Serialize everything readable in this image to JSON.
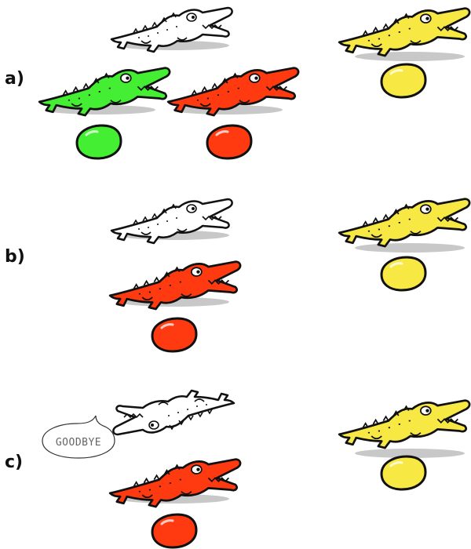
{
  "rows": [
    {
      "label": "a)"
    },
    {
      "label": "b)"
    },
    {
      "label": "c)"
    }
  ],
  "speech_bubble": {
    "text": "GOODBYE"
  },
  "colors": {
    "white_gator": "#ffffff",
    "green_gator": "#44ee33",
    "red_gator": "#ff3a10",
    "yellow_gator": "#f7e844",
    "green_egg": "#44ee33",
    "red_egg": "#ff3a10",
    "yellow_egg": "#f7e844",
    "outline": "#111111",
    "shadow": "#c8c8c8"
  },
  "icons": [
    "alligator-icon",
    "egg-icon",
    "speech-bubble-icon"
  ]
}
